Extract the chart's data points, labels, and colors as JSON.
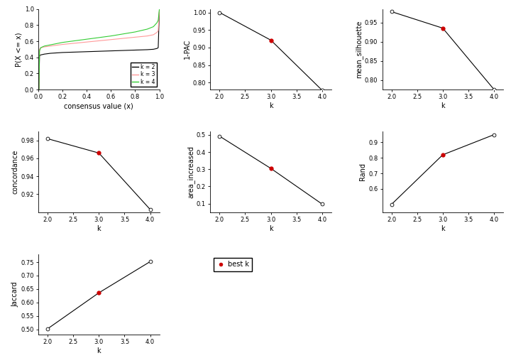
{
  "ecdf": {
    "k2": {
      "x": [
        0.0,
        0.005,
        0.01,
        0.02,
        0.05,
        0.1,
        0.2,
        0.3,
        0.4,
        0.5,
        0.6,
        0.7,
        0.8,
        0.9,
        0.95,
        0.98,
        0.99,
        1.0
      ],
      "y": [
        0.0,
        0.0,
        0.42,
        0.43,
        0.44,
        0.45,
        0.46,
        0.465,
        0.47,
        0.475,
        0.48,
        0.485,
        0.49,
        0.495,
        0.5,
        0.51,
        0.52,
        1.0
      ]
    },
    "k3": {
      "x": [
        0.0,
        0.005,
        0.01,
        0.02,
        0.05,
        0.1,
        0.2,
        0.3,
        0.4,
        0.5,
        0.6,
        0.7,
        0.8,
        0.9,
        0.95,
        0.98,
        0.99,
        1.0
      ],
      "y": [
        0.0,
        0.0,
        0.5,
        0.52,
        0.53,
        0.54,
        0.56,
        0.575,
        0.59,
        0.605,
        0.62,
        0.635,
        0.65,
        0.665,
        0.68,
        0.71,
        0.73,
        1.0
      ]
    },
    "k4": {
      "x": [
        0.0,
        0.005,
        0.01,
        0.02,
        0.05,
        0.1,
        0.2,
        0.3,
        0.4,
        0.5,
        0.6,
        0.7,
        0.8,
        0.9,
        0.95,
        0.98,
        0.99,
        1.0
      ],
      "y": [
        0.0,
        0.0,
        0.48,
        0.52,
        0.54,
        0.555,
        0.585,
        0.605,
        0.625,
        0.645,
        0.665,
        0.69,
        0.715,
        0.75,
        0.78,
        0.83,
        0.86,
        1.0
      ]
    },
    "colors": {
      "k2": "#000000",
      "k3": "#FF9999",
      "k4": "#33CC33"
    },
    "xlabel": "consensus value (x)",
    "ylabel": "P(X <= x)",
    "ylim": [
      0.0,
      1.0
    ],
    "xlim": [
      0.0,
      1.0
    ]
  },
  "pac": {
    "k": [
      2,
      3,
      4
    ],
    "y": [
      1.0,
      0.921,
      0.778
    ],
    "best_k": 3,
    "ylabel": "1-PAC",
    "xlabel": "k",
    "ylim": [
      0.78,
      1.01
    ],
    "yticks": [
      0.8,
      0.85,
      0.9,
      0.95,
      1.0
    ]
  },
  "silhouette": {
    "k": [
      2,
      3,
      4
    ],
    "y": [
      0.978,
      0.935,
      0.775
    ],
    "best_k": 3,
    "ylabel": "mean_silhouette",
    "xlabel": "k",
    "ylim": [
      0.775,
      0.985
    ],
    "yticks": [
      0.8,
      0.85,
      0.9,
      0.95
    ]
  },
  "concordance": {
    "k": [
      2,
      3,
      4
    ],
    "y": [
      0.982,
      0.966,
      0.903
    ],
    "best_k": 3,
    "ylabel": "concordance",
    "xlabel": "k",
    "ylim": [
      0.9,
      0.99
    ],
    "yticks": [
      0.92,
      0.94,
      0.96,
      0.98
    ]
  },
  "area_increased": {
    "k": [
      2,
      3,
      4
    ],
    "y": [
      0.493,
      0.305,
      0.097
    ],
    "best_k": 3,
    "ylabel": "area_increased",
    "xlabel": "k",
    "ylim": [
      0.05,
      0.52
    ],
    "yticks": [
      0.1,
      0.2,
      0.3,
      0.4,
      0.5
    ]
  },
  "rand": {
    "k": [
      2,
      3,
      4
    ],
    "y": [
      0.5,
      0.82,
      0.95
    ],
    "best_k": 3,
    "ylabel": "Rand",
    "xlabel": "k",
    "ylim": [
      0.45,
      0.97
    ],
    "yticks": [
      0.6,
      0.7,
      0.8,
      0.9
    ]
  },
  "jaccard": {
    "k": [
      2,
      3,
      4
    ],
    "y": [
      0.502,
      0.636,
      0.752
    ],
    "best_k": 3,
    "ylabel": "Jaccard",
    "xlabel": "k",
    "ylim": [
      0.48,
      0.78
    ],
    "yticks": [
      0.5,
      0.55,
      0.6,
      0.65,
      0.7,
      0.75
    ]
  },
  "legend_ecdf": {
    "entries": [
      "k = 2",
      "k = 3",
      "k = 4"
    ],
    "colors": [
      "#000000",
      "#FF9999",
      "#33CC33"
    ]
  },
  "legend_best": {
    "label": "best k",
    "color": "#CC0000"
  },
  "background_color": "#FFFFFF",
  "tick_fontsize": 6,
  "label_fontsize": 7
}
